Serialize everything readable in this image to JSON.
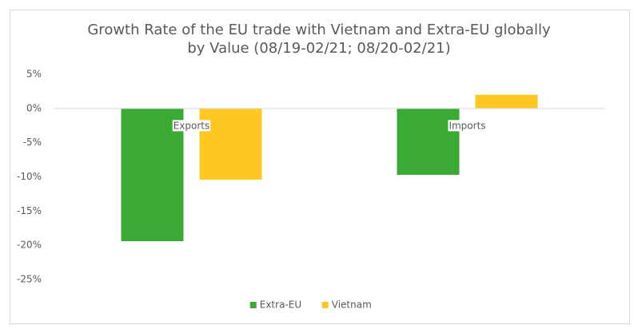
{
  "chart_data": {
    "type": "bar",
    "title": "Growth Rate of the EU trade with Vietnam and Extra-EU globally by Value (08/19-02/21; 08/20-02/21)",
    "categories": [
      "Exports",
      "Imports"
    ],
    "series": [
      {
        "name": "Extra-EU",
        "color": "#3aaa35",
        "values": [
          -19.4,
          -9.7
        ]
      },
      {
        "name": "Vietnam",
        "color": "#ffc820",
        "values": [
          -10.4,
          2.0
        ]
      }
    ],
    "ylim": [
      -25,
      5
    ],
    "yticks": [
      {
        "value": 5,
        "label": "5%"
      },
      {
        "value": 0,
        "label": "0%"
      },
      {
        "value": -5,
        "label": "-5%"
      },
      {
        "value": -10,
        "label": "-10%"
      },
      {
        "value": -15,
        "label": "-15%"
      },
      {
        "value": -20,
        "label": "-20%"
      },
      {
        "value": -25,
        "label": "-25%"
      }
    ],
    "grid": false,
    "legend": "bottom"
  }
}
